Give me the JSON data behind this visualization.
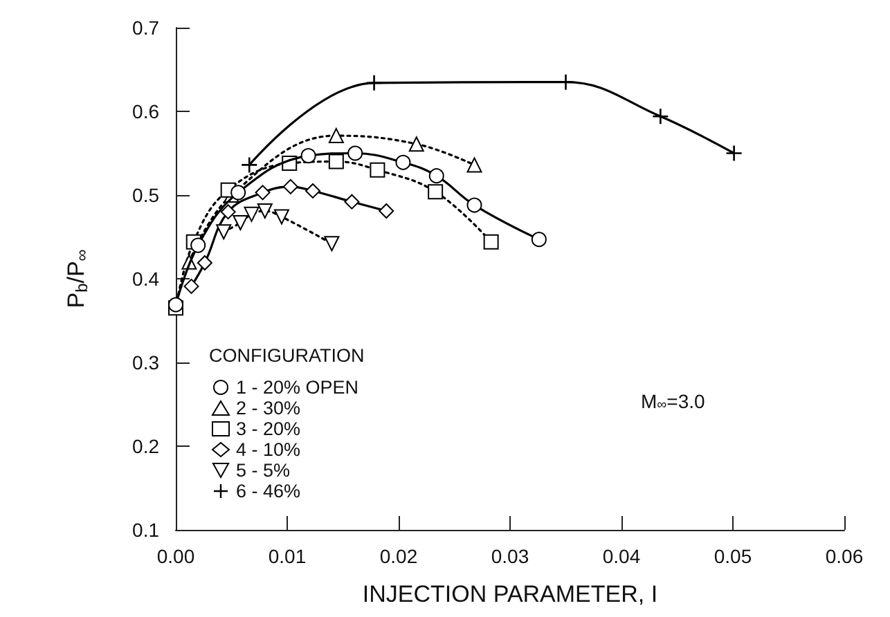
{
  "chart_data": {
    "type": "line",
    "xlabel": "INJECTION PARAMETER, I",
    "ylabel": "P$_{b}$/P$_{∞}$",
    "legend_title": "CONFIGURATION",
    "legend": "bottom left",
    "grid": false,
    "annotations": [
      "M$_{∞}$=3.0"
    ],
    "xlim": [
      0,
      0.06
    ],
    "ylim": [
      0.1,
      0.7
    ],
    "xticks": [
      {
        "value": 0,
        "label": "0.00"
      },
      {
        "value": 0.01,
        "label": "0.01"
      },
      {
        "value": 0.02,
        "label": "0.02"
      },
      {
        "value": 0.03,
        "label": "0.03"
      },
      {
        "value": 0.04,
        "label": "0.04"
      },
      {
        "value": 0.05,
        "label": "0.05"
      },
      {
        "value": 0.06,
        "label": "0.06"
      }
    ],
    "yticks": [
      0.1,
      0.2,
      0.3,
      0.4,
      0.5,
      0.6,
      0.7
    ],
    "series": [
      {
        "name": "1 - 20% OPEN",
        "color": "#000000",
        "marker": "circle",
        "line_style": "solid",
        "x": [
          0,
          0.002,
          0.0056,
          0.0119,
          0.0161,
          0.0204,
          0.0234,
          0.0268,
          0.0326
        ],
        "values": [
          0.369,
          0.44,
          0.503,
          0.547,
          0.55,
          0.539,
          0.523,
          0.488,
          0.447
        ]
      },
      {
        "name": "2 - 30%",
        "color": "#000000",
        "marker": "triangle",
        "line_style": "dotted",
        "x": [
          0.0012,
          0.005,
          0.0144,
          0.0216,
          0.0268
        ],
        "values": [
          0.42,
          0.5,
          0.571,
          0.561,
          0.536
        ]
      },
      {
        "name": "3 - 20%",
        "color": "#000000",
        "marker": "square",
        "line_style": "dotted",
        "x": [
          0,
          0.0016,
          0.0047,
          0.0102,
          0.0144,
          0.0181,
          0.0233,
          0.0283
        ],
        "values": [
          0.365,
          0.444,
          0.506,
          0.538,
          0.54,
          0.53,
          0.504,
          0.444
        ]
      },
      {
        "name": "4 - 10%",
        "color": "#000000",
        "marker": "diamond",
        "line_style": "solid",
        "x": [
          0.0014,
          0.0026,
          0.0047,
          0.0078,
          0.0103,
          0.0123,
          0.0158,
          0.0189
        ],
        "values": [
          0.391,
          0.419,
          0.48,
          0.503,
          0.51,
          0.505,
          0.492,
          0.481
        ]
      },
      {
        "name": "5 - 5%",
        "color": "#000000",
        "marker": "triangle-down",
        "line_style": "dotted",
        "x": [
          0.0043,
          0.0058,
          0.0068,
          0.008,
          0.0095,
          0.014
        ],
        "values": [
          0.456,
          0.467,
          0.477,
          0.481,
          0.474,
          0.442
        ]
      },
      {
        "name": "6 - 46%",
        "color": "#000000",
        "marker": "cross",
        "line_style": "solid",
        "x": [
          0.0066,
          0.0178,
          0.035,
          0.0435,
          0.0501
        ],
        "values": [
          0.536,
          0.634,
          0.635,
          0.594,
          0.55
        ]
      }
    ]
  }
}
